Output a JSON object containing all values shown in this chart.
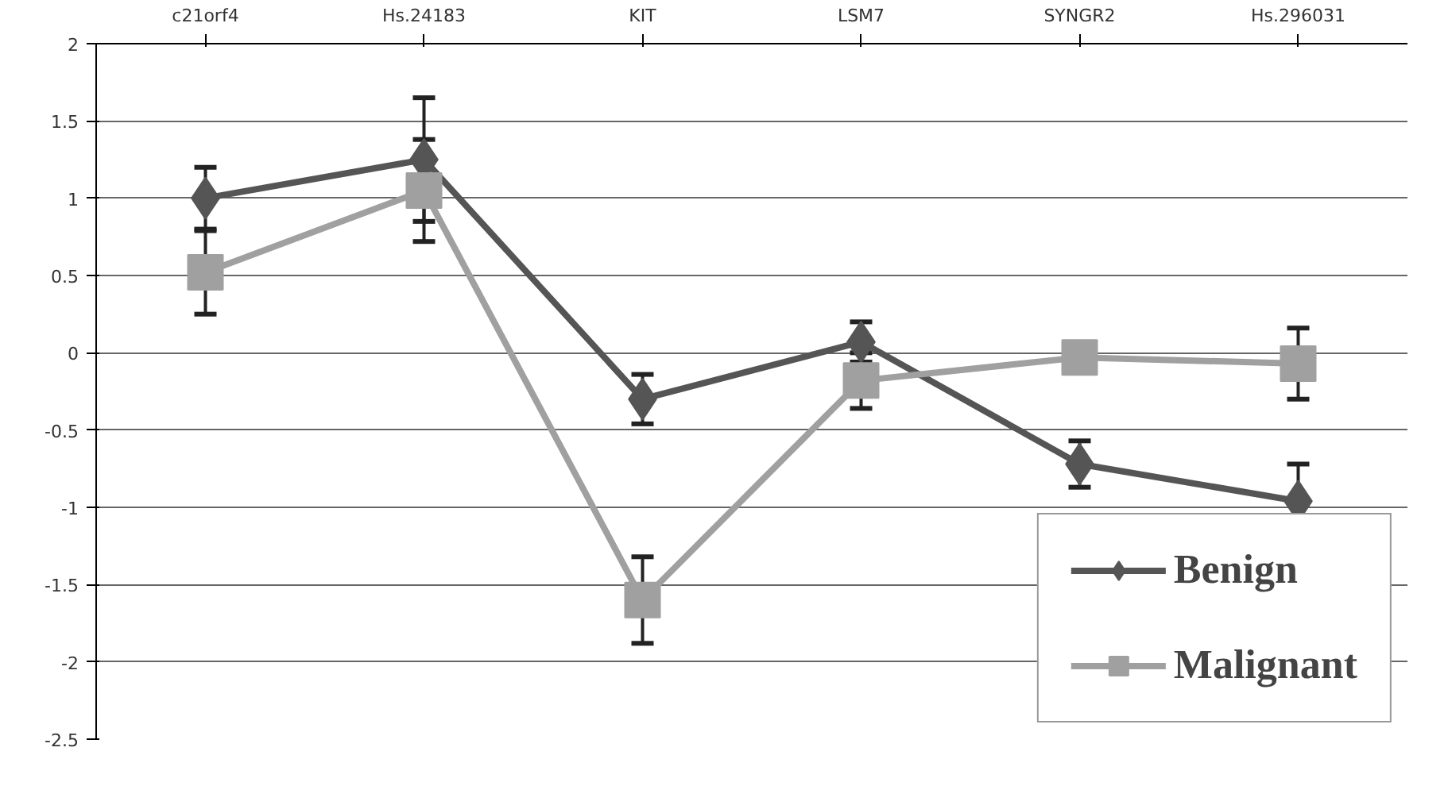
{
  "chart_data": {
    "type": "line",
    "categories": [
      "c21orf4",
      "Hs.24183",
      "KIT",
      "LSM7",
      "SYNGR2",
      "Hs.296031"
    ],
    "series": [
      {
        "name": "Benign",
        "color": "#555555",
        "marker": "diamond",
        "values": [
          1.0,
          1.25,
          -0.3,
          0.07,
          -0.72,
          -0.96
        ],
        "errors": [
          0.2,
          0.4,
          0.16,
          0.13,
          0.15,
          0.24
        ]
      },
      {
        "name": "Malignant",
        "color": "#a0a0a0",
        "marker": "square",
        "values": [
          0.52,
          1.05,
          -1.6,
          -0.18,
          -0.03,
          -0.07
        ],
        "errors": [
          0.27,
          0.33,
          0.28,
          0.18,
          null,
          0.23
        ]
      }
    ],
    "ylim": [
      -2.5,
      2
    ],
    "yticks": [
      -2.5,
      -2,
      -1.5,
      -1,
      -0.5,
      0,
      0.5,
      1,
      1.5,
      2
    ],
    "grid": "y",
    "legend": "bottom right",
    "line_style": "solid"
  }
}
